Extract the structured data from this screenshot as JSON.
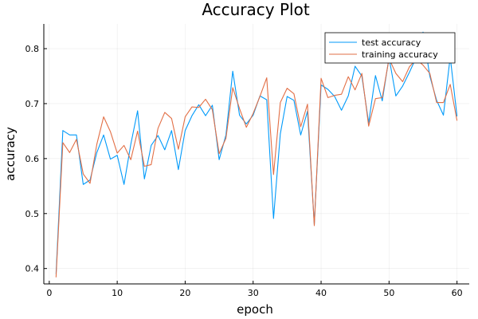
{
  "chart_data": {
    "type": "line",
    "title": "Accuracy Plot",
    "xlabel": "epoch",
    "ylabel": "accuracy",
    "xlim": [
      -0.8,
      61.8
    ],
    "ylim": [
      0.372,
      0.845
    ],
    "xticks": [
      0,
      10,
      20,
      30,
      40,
      50,
      60
    ],
    "yticks": [
      0.4,
      0.5,
      0.6,
      0.7,
      0.8
    ],
    "x_tick_labels": [
      "0",
      "10",
      "20",
      "30",
      "40",
      "50",
      "60"
    ],
    "y_tick_labels": [
      "0.4",
      "0.5",
      "0.6",
      "0.7",
      "0.8"
    ],
    "grid": true,
    "legend_position": "top-right",
    "x": [
      1,
      2,
      3,
      4,
      5,
      6,
      7,
      8,
      9,
      10,
      11,
      12,
      13,
      14,
      15,
      16,
      17,
      18,
      19,
      20,
      21,
      22,
      23,
      24,
      25,
      26,
      27,
      28,
      29,
      30,
      31,
      32,
      33,
      34,
      35,
      36,
      37,
      38,
      39,
      40,
      41,
      42,
      43,
      44,
      45,
      46,
      47,
      48,
      49,
      50,
      51,
      52,
      53,
      54,
      55,
      56,
      57,
      58,
      59,
      60
    ],
    "series": [
      {
        "name": "test accuracy",
        "color": "#009AFA",
        "values": [
          0.39,
          0.651,
          0.643,
          0.643,
          0.553,
          0.561,
          0.611,
          0.643,
          0.599,
          0.606,
          0.553,
          0.626,
          0.687,
          0.563,
          0.624,
          0.642,
          0.616,
          0.651,
          0.58,
          0.651,
          0.678,
          0.698,
          0.678,
          0.697,
          0.598,
          0.643,
          0.759,
          0.679,
          0.663,
          0.679,
          0.714,
          0.707,
          0.491,
          0.645,
          0.713,
          0.706,
          0.643,
          0.686,
          0.48,
          0.734,
          0.726,
          0.713,
          0.688,
          0.714,
          0.768,
          0.75,
          0.665,
          0.751,
          0.705,
          0.784,
          0.714,
          0.732,
          0.757,
          0.784,
          0.83,
          0.75,
          0.706,
          0.679,
          0.785,
          0.677
        ]
      },
      {
        "name": "training accuracy",
        "color": "#E26F46",
        "values": [
          0.384,
          0.629,
          0.611,
          0.635,
          0.572,
          0.555,
          0.626,
          0.676,
          0.649,
          0.61,
          0.624,
          0.598,
          0.65,
          0.586,
          0.589,
          0.655,
          0.684,
          0.673,
          0.617,
          0.676,
          0.694,
          0.693,
          0.708,
          0.689,
          0.609,
          0.637,
          0.729,
          0.691,
          0.657,
          0.682,
          0.713,
          0.747,
          0.571,
          0.702,
          0.728,
          0.718,
          0.658,
          0.699,
          0.478,
          0.746,
          0.711,
          0.715,
          0.717,
          0.749,
          0.725,
          0.755,
          0.659,
          0.709,
          0.711,
          0.782,
          0.755,
          0.74,
          0.767,
          0.781,
          0.77,
          0.755,
          0.702,
          0.702,
          0.735,
          0.669
        ]
      }
    ]
  }
}
